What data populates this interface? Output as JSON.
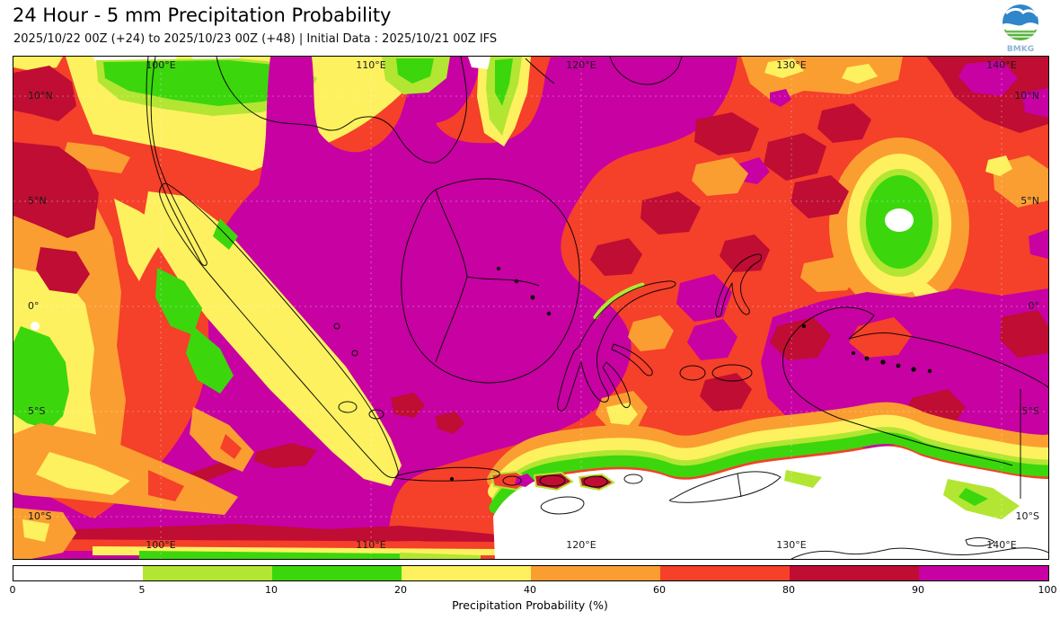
{
  "header": {
    "title": "24 Hour - 5 mm Precipitation Probability",
    "subtitle": "2025/10/22 00Z (+24) to 2025/10/23 00Z (+48) | Initial Data : 2025/10/21 00Z IFS",
    "logo_text": "BMKG"
  },
  "map": {
    "lon_labels": [
      "100°E",
      "110°E",
      "120°E",
      "130°E",
      "140°E"
    ],
    "lat_labels": [
      "10°N",
      "5°N",
      "0°",
      "5°S",
      "10°S"
    ]
  },
  "legend": {
    "title": "Precipitation Probability (%)",
    "ticks": [
      "0",
      "5",
      "10",
      "20",
      "40",
      "60",
      "80",
      "90",
      "100"
    ],
    "thresholds": [
      0,
      5,
      10,
      20,
      40,
      60,
      80,
      90,
      100
    ],
    "segments": [
      {
        "range": "0-5",
        "color_key": "wht"
      },
      {
        "range": "5-10",
        "color_key": "lgr"
      },
      {
        "range": "10-20",
        "color_key": "grn"
      },
      {
        "range": "20-40",
        "color_key": "yel"
      },
      {
        "range": "40-60",
        "color_key": "org"
      },
      {
        "range": "60-80",
        "color_key": "red"
      },
      {
        "range": "80-90",
        "color_key": "crm"
      },
      {
        "range": "90-100",
        "color_key": "mag"
      }
    ]
  },
  "palette": {
    "wht": "#FFFFFF",
    "lgr": "#B2E633",
    "grn": "#3CD60D",
    "yel": "#FDF160",
    "org": "#FB9E32",
    "red": "#F5402A",
    "crm": "#BF0D33",
    "mag": "#C701A2",
    "logo_blue": "#2F86C8",
    "logo_green": "#57B33E"
  }
}
